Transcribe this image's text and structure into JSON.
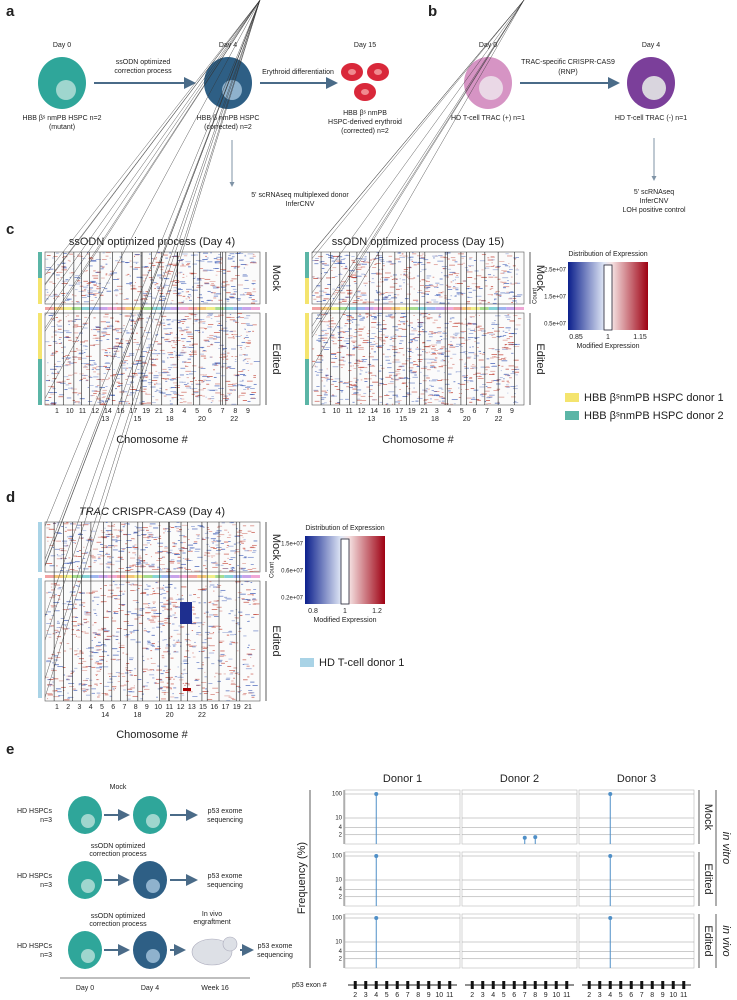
{
  "panel_a": {
    "label": "a",
    "day0": "Day 0",
    "day4": "Day 4",
    "day15": "Day 15",
    "arrow1": [
      "ssODN optimized",
      "correction process"
    ],
    "arrow2": "Erythroid differentiation",
    "cell0": [
      "HBB βˢ nmPB HSPC n=2",
      "(mutant)"
    ],
    "cell4": [
      "HBB β nmPB HSPC",
      "(corrected) n=2"
    ],
    "cell15": [
      "HBB βˢ nmPB",
      "HSPC-derived erythroid",
      "(corrected) n=2"
    ],
    "readout": [
      "5' scRNAseq multiplexed donor",
      "InferCNV"
    ]
  },
  "panel_b": {
    "label": "b",
    "day0": "Day 0",
    "day4": "Day 4",
    "arrow": [
      "TRAC-specific CRISPR-CAS9",
      "(RNP)"
    ],
    "cell0": "HD T-cell TRAC (+) n=1",
    "cell4": "HD T-cell TRAC (-) n=1",
    "readout": [
      "5' scRNAseq",
      "InferCNV",
      "LOH positive control"
    ]
  },
  "panel_c": {
    "label": "c",
    "titles": [
      "ssODN optimized process (Day 4)",
      "ssODN optimized process (Day 15)"
    ],
    "groups": [
      "Mock",
      "Edited"
    ],
    "chrom_top": [
      "1",
      "10",
      "11",
      "12",
      "14",
      "16",
      "17",
      "19",
      "21",
      "3",
      "4",
      "5",
      "6",
      "7",
      "8",
      "9"
    ],
    "chrom_bottom": [
      "13",
      "15",
      "18",
      "20",
      "22"
    ],
    "xlabel": "Chomosome #",
    "colorbar": {
      "title": "Distribution of Expression",
      "ylabel": "Count",
      "yticks": [
        "2.5e+07",
        "1.5e+07",
        "0.5e+07"
      ],
      "xlabel": "Modified Expression",
      "xticks": [
        "0.85",
        "1",
        "1.15"
      ]
    },
    "legend": [
      {
        "name": "HBB βˢnmPB HSPC donor 1",
        "color": "#f4e46e"
      },
      {
        "name": "HBB βˢnmPB HSPC donor 2",
        "color": "#5bb5a6"
      }
    ]
  },
  "panel_d": {
    "label": "d",
    "title_italic": "TRAC",
    "title_rest": " CRISPR-CAS9 (Day 4)",
    "groups": [
      "Mock",
      "Edited"
    ],
    "chrom_top": [
      "1",
      "2",
      "3",
      "4",
      "5",
      "6",
      "7",
      "8",
      "9",
      "10",
      "11",
      "12",
      "13",
      "15",
      "16",
      "17",
      "19",
      "21"
    ],
    "chrom_bottom": [
      "14",
      "18",
      "20",
      "22"
    ],
    "xlabel": "Chomosome #",
    "colorbar": {
      "title": "Distribution of Expression",
      "ylabel": "Count",
      "yticks": [
        "1.5e+07",
        "0.6e+07",
        "0.2e+07"
      ],
      "xlabel": "Modified Expression",
      "xticks": [
        "0.8",
        "1",
        "1.2"
      ]
    },
    "legend": [
      {
        "name": "HD T-cell donor 1",
        "color": "#a9d3e6"
      }
    ]
  },
  "panel_e": {
    "label": "e",
    "hspc": [
      "HD HSPCs",
      "n=3"
    ],
    "mock": "Mock",
    "process": [
      "ssODN optimized",
      "correction process"
    ],
    "engraft": [
      "In vivo",
      "engraftment"
    ],
    "seq": [
      "p53 exome",
      "sequencing"
    ],
    "days": [
      "Day 0",
      "Day 4",
      "Week 16"
    ],
    "chart": {
      "type": "lollipop",
      "donors": [
        "Donor 1",
        "Donor 2",
        "Donor 3"
      ],
      "ylabel": "Frequency (%)",
      "xlabel": "p53 exon #",
      "ylim": [
        1,
        100
      ],
      "yticks": [
        100,
        10,
        4,
        2
      ],
      "log_y": true,
      "xlim": [
        1.5,
        11.5
      ],
      "xticks": [
        2,
        3,
        4,
        5,
        6,
        7,
        8,
        9,
        10,
        11
      ],
      "color": "#4f8fc7",
      "rows": [
        {
          "label": "Mock",
          "points": [
            [
              {
                "exon": 4,
                "freq": 100
              }
            ],
            [
              {
                "exon": 7,
                "freq": 1.5
              },
              {
                "exon": 8,
                "freq": 1.6
              }
            ],
            [
              {
                "exon": 4,
                "freq": 100
              }
            ]
          ]
        },
        {
          "label": "Edited",
          "points": [
            [
              {
                "exon": 4,
                "freq": 100
              }
            ],
            [],
            [
              {
                "exon": 4,
                "freq": 100
              }
            ]
          ]
        },
        {
          "label": "Edited",
          "points": [
            [
              {
                "exon": 4,
                "freq": 100
              }
            ],
            [],
            [
              {
                "exon": 4,
                "freq": 100
              }
            ]
          ]
        }
      ],
      "groups": [
        "in vitro",
        "in vivo"
      ]
    }
  }
}
